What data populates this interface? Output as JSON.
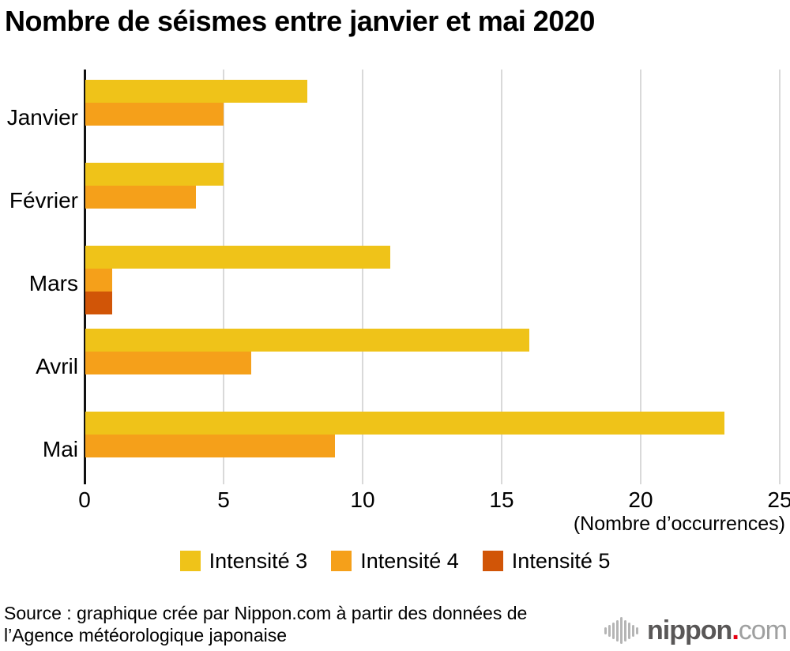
{
  "title": "Nombre de séismes entre janvier et mai 2020",
  "chart_data": {
    "type": "bar",
    "orientation": "horizontal",
    "categories": [
      "Janvier",
      "Février",
      "Mars",
      "Avril",
      "Mai"
    ],
    "series": [
      {
        "name": "Intensité 3",
        "color": "#EFC319",
        "values": [
          8,
          5,
          11,
          16,
          23
        ]
      },
      {
        "name": "Intensité 4",
        "color": "#F5A01A",
        "values": [
          5,
          4,
          1,
          6,
          9
        ]
      },
      {
        "name": "Intensité 5",
        "color": "#D15507",
        "values": [
          0,
          0,
          1,
          0,
          0
        ]
      }
    ],
    "xlabel": "(Nombre d’occurrences)",
    "xticks": [
      0,
      5,
      10,
      15,
      20,
      25
    ],
    "xlim": [
      0,
      25
    ],
    "grid": true,
    "legend_position": "bottom",
    "grid_color": "#D9D9D9",
    "axis_color": "#111111"
  },
  "footer": {
    "source_line1": "Source : graphique crée par Nippon.com à partir des données de",
    "source_line2": "l’Agence météorologique japonaise"
  },
  "logo": {
    "name": "nippon",
    "dot": ".",
    "tld": "com",
    "name_color": "#595757",
    "dot_color": "#E60012",
    "tld_color": "#9FA0A0",
    "icon_color": "#B5B5B5"
  }
}
